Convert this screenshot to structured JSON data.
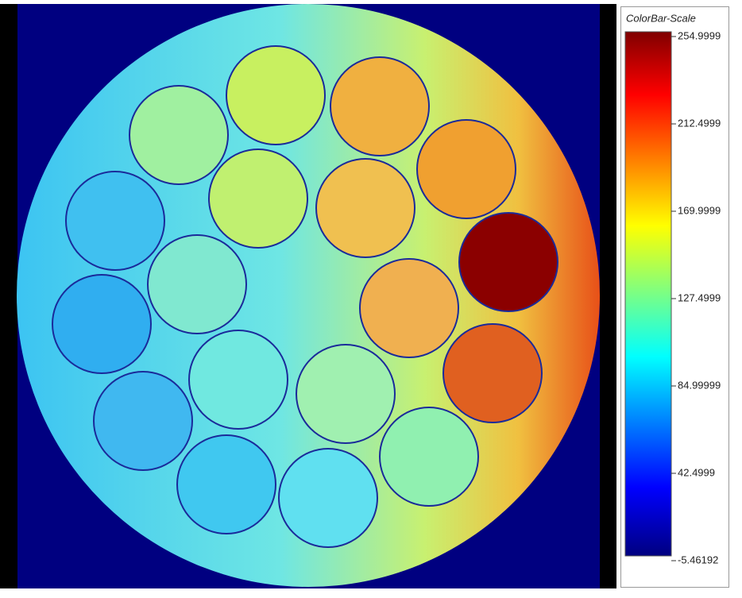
{
  "colorbar": {
    "title": "ColorBar-Scale",
    "ticks": [
      "254.9999",
      "212.4999",
      "169.9999",
      "127.4999",
      "84.99999",
      "42.4999",
      "-5.46192"
    ]
  }
}
